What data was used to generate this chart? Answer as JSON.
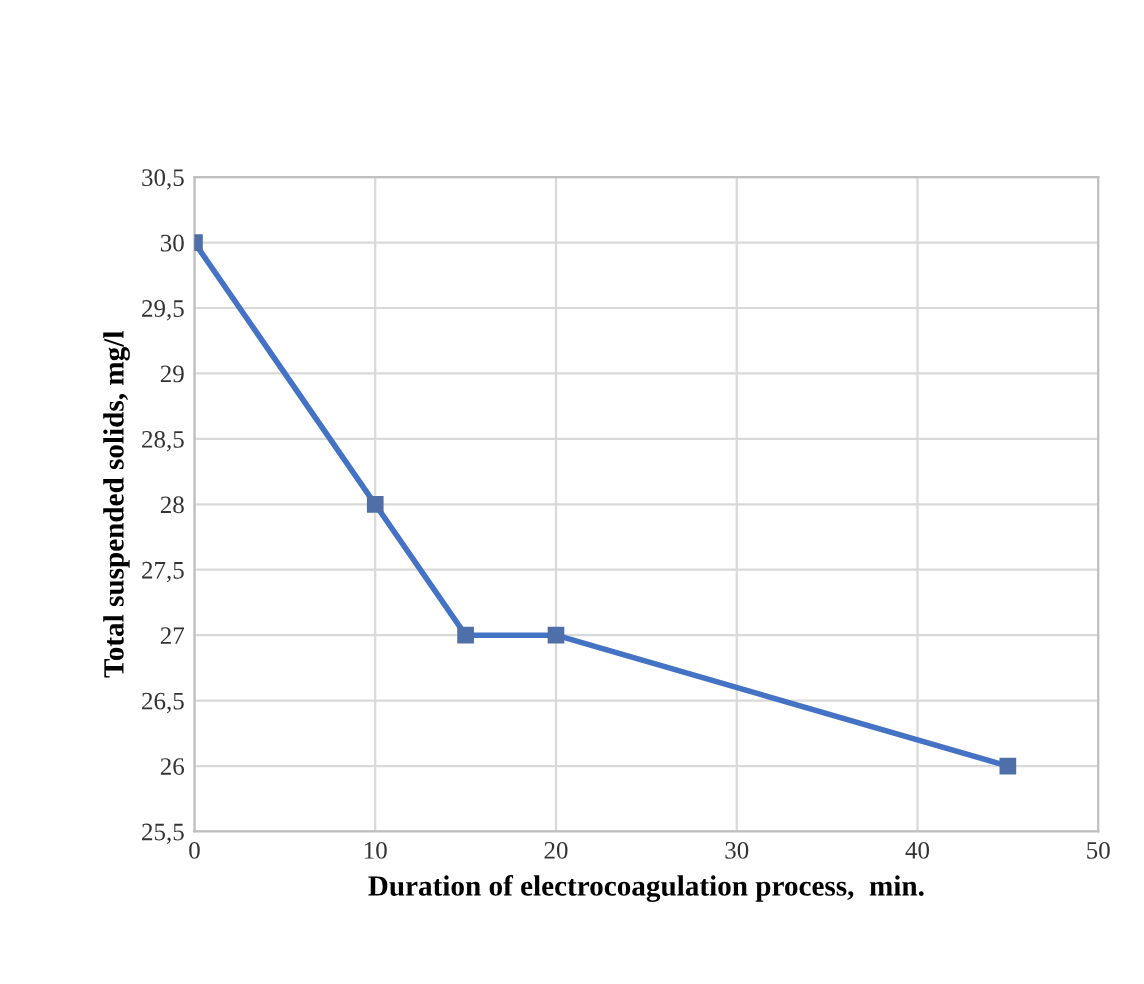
{
  "chart_data": {
    "type": "line",
    "xlabel": "Duration of electrocoagulation process,  min.",
    "ylabel": "Total suspended solids, mg/l",
    "x": [
      0,
      10,
      15,
      20,
      45
    ],
    "series": [
      {
        "color": "#4472c4",
        "values": [
          30,
          28,
          27,
          27,
          26
        ]
      }
    ],
    "xlim": [
      0,
      50
    ],
    "xticks": [
      0,
      10,
      20,
      30,
      40,
      50
    ],
    "ylim": [
      25.5,
      30.5
    ],
    "yticks": [
      {
        "value": 25.5,
        "label": "25,5"
      },
      {
        "value": 26,
        "label": "26"
      },
      {
        "value": 26.5,
        "label": "26,5"
      },
      {
        "value": 27,
        "label": "27"
      },
      {
        "value": 27.5,
        "label": "27,5"
      },
      {
        "value": 28,
        "label": "28"
      },
      {
        "value": 28.5,
        "label": "28,5"
      },
      {
        "value": 29,
        "label": "29"
      },
      {
        "value": 29.5,
        "label": "29,5"
      },
      {
        "value": 30,
        "label": "30"
      },
      {
        "value": 30.5,
        "label": "30,5"
      }
    ],
    "grid": true,
    "marker": "square",
    "line_style": "solid"
  }
}
